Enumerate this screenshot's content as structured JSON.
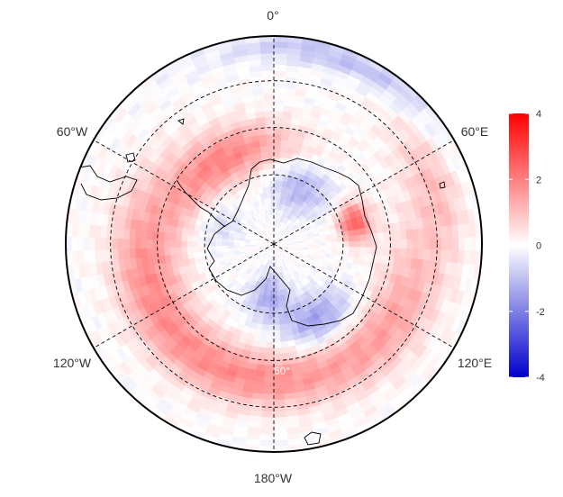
{
  "chart_data": {
    "type": "heatmap",
    "projection": "south-polar-stereographic",
    "title": "",
    "longitude_labels": [
      "0°",
      "60°E",
      "120°E",
      "180°W",
      "120°W",
      "60°W"
    ],
    "latitude_label_visible": "60°",
    "colorbar": {
      "min": -4,
      "max": 4,
      "ticks": [
        4,
        2,
        0,
        -2,
        -4
      ],
      "colors": {
        "low": "#0000cc",
        "mid": "#ffffff",
        "high": "#ff0000"
      }
    },
    "anomaly_fields": [
      {
        "feature": "ring-south-of-africa",
        "sign": "positive",
        "center_lon": 30,
        "max_value": 1.9
      },
      {
        "feature": "ring-south-pacific",
        "sign": "positive",
        "center_lon": 170,
        "max_value": 1.6
      },
      {
        "feature": "south-indian-ocean",
        "sign": "positive",
        "center_lon": 105,
        "max_value": 1.5
      },
      {
        "feature": "bellingshausen-sea",
        "sign": "positive",
        "center_lon": -75,
        "max_value": 2.5
      },
      {
        "feature": "amundsen-ross-seas",
        "sign": "negative",
        "center_lon": -150,
        "max_value": -1.5
      },
      {
        "feature": "ross-ice-shelf",
        "sign": "negative",
        "center_lon": 175,
        "max_value": -1.3
      },
      {
        "feature": "weddell-sea-edge",
        "sign": "negative",
        "center_lon": -20,
        "max_value": -1.2
      },
      {
        "feature": "outer-atlantic",
        "sign": "negative",
        "center_lon": -20,
        "max_value": -1.0
      }
    ],
    "grid_lines": "dashed",
    "legend_position": "right"
  }
}
